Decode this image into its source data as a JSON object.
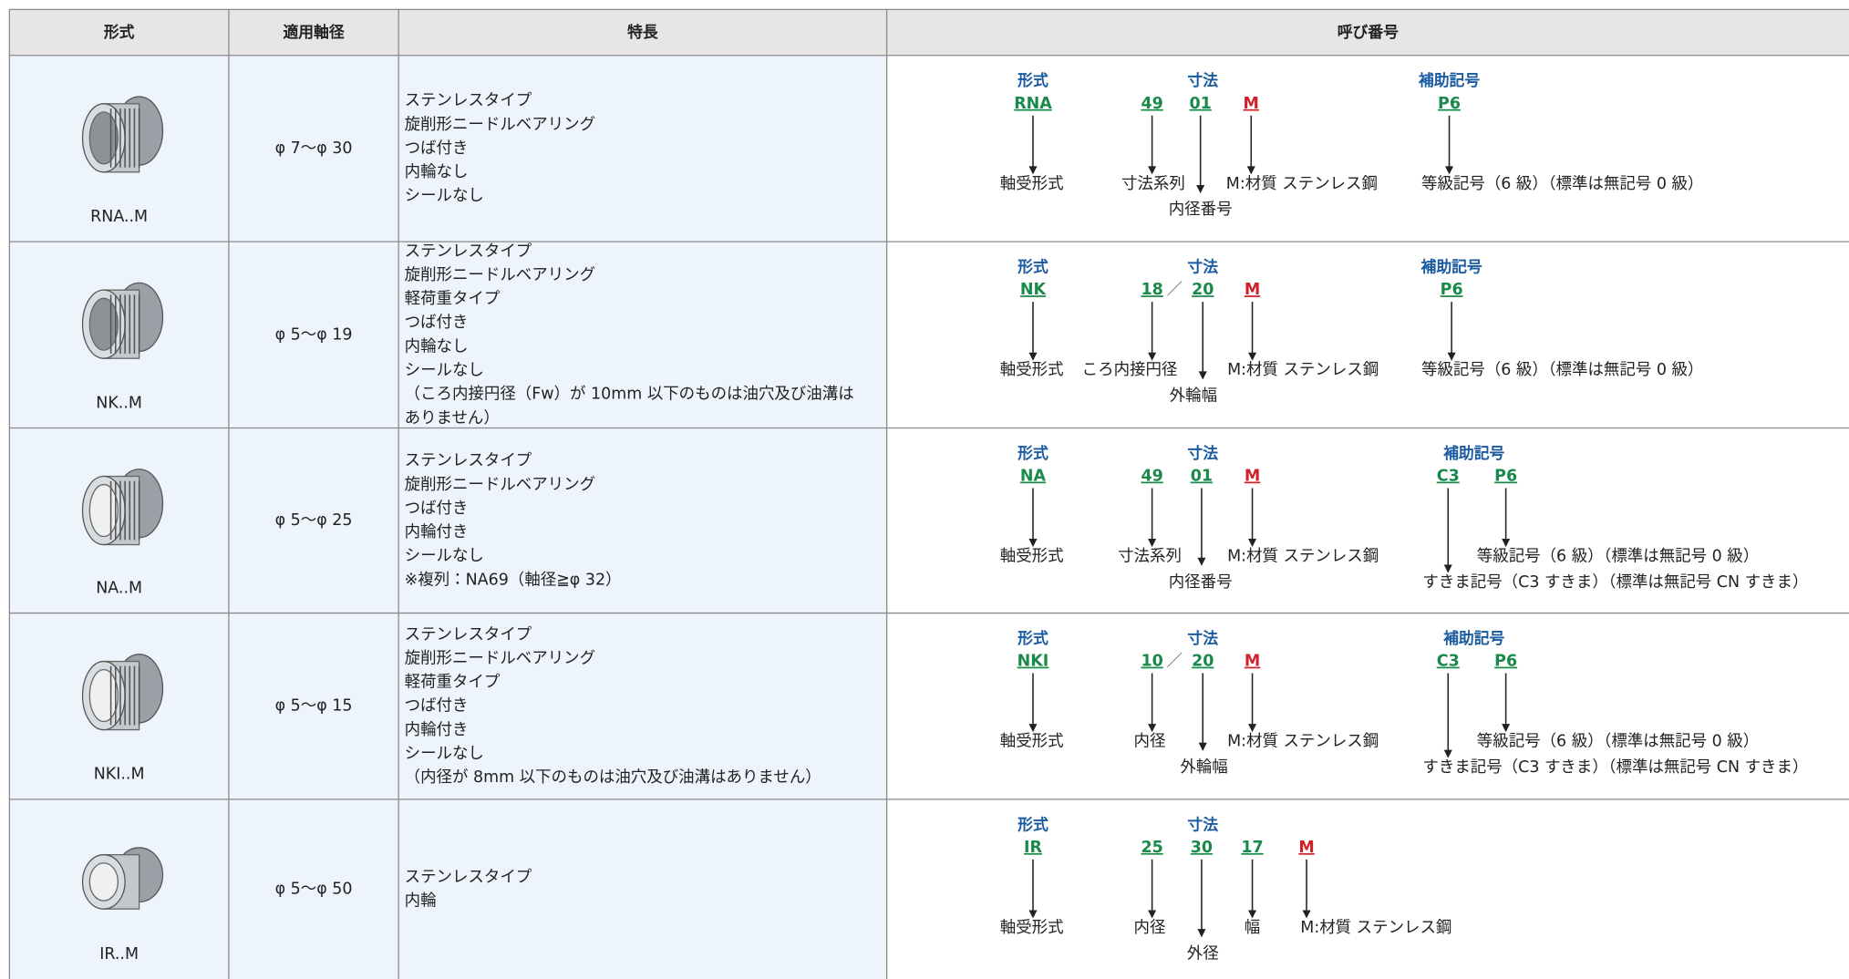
{
  "header": {
    "columns": [
      "形式",
      "適用軸径",
      "特長",
      "呼び番号"
    ]
  },
  "rows": [
    {
      "model": "RNA..M",
      "shaft": "φ 7～φ 30",
      "features": [
        "ステンレスタイプ",
        "旋削形ニードルベアリング",
        "つば付き",
        "内輪なし",
        "シールなし"
      ],
      "designation": {
        "labels": [
          "形式",
          "寸法",
          "補助記号"
        ],
        "codes": [
          "RNA",
          "49",
          "01",
          "M",
          "P6"
        ],
        "descriptions": [
          "軸受形式",
          "寸法系列",
          "内径番号",
          "M:材質 ステンレス鋼",
          "等級記号（6 級）（標準は無記号 0 級）"
        ]
      }
    },
    {
      "model": "NK..M",
      "shaft": "φ 5～φ 19",
      "features": [
        "ステンレスタイプ",
        "旋削形ニードルベアリング",
        "軽荷重タイプ",
        "つば付き",
        "内輪なし",
        "シールなし",
        "（ころ内接円径（Fw）が 10mm 以下のものは油穴及び油溝は",
        "ありません）"
      ],
      "designation": {
        "labels": [
          "形式",
          "寸法",
          "補助記号"
        ],
        "codes": [
          "NK",
          "18",
          "／",
          "20",
          "M",
          "P6"
        ],
        "descriptions": [
          "軸受形式",
          "ころ内接円径",
          "外輪幅",
          "M:材質 ステンレス鋼",
          "等級記号（6 級）（標準は無記号 0 級）"
        ]
      }
    },
    {
      "model": "NA..M",
      "shaft": "φ 5～φ 25",
      "features": [
        "ステンレスタイプ",
        "旋削形ニードルベアリング",
        "つば付き",
        "内輪付き",
        "シールなし",
        "※複列：NA69（軸径≧φ 32）"
      ],
      "designation": {
        "labels": [
          "形式",
          "寸法",
          "補助記号"
        ],
        "codes": [
          "NA",
          "49",
          "01",
          "M",
          "C3",
          "P6"
        ],
        "descriptions": [
          "軸受形式",
          "寸法系列",
          "内径番号",
          "M:材質 ステンレス鋼",
          "等級記号（6 級）（標準は無記号 0 級）",
          "すきま記号（C3 すきま）（標準は無記号 CN すきま）"
        ]
      }
    },
    {
      "model": "NKI..M",
      "shaft": "φ 5～φ 15",
      "features": [
        "ステンレスタイプ",
        "旋削形ニードルベアリング",
        "軽荷重タイプ",
        "つば付き",
        "内輪付き",
        "シールなし",
        "（内径が 8mm 以下のものは油穴及び油溝はありません）"
      ],
      "designation": {
        "labels": [
          "形式",
          "寸法",
          "補助記号"
        ],
        "codes": [
          "NKI",
          "10",
          "／",
          "20",
          "M",
          "C3",
          "P6"
        ],
        "descriptions": [
          "軸受形式",
          "内径",
          "外輪幅",
          "M:材質 ステンレス鋼",
          "等級記号（6 級）（標準は無記号 0 級）",
          "すきま記号（C3 すきま）（標準は無記号 CN すきま）"
        ]
      }
    },
    {
      "model": "IR..M",
      "shaft": "φ 5～φ 50",
      "features": [
        "ステンレスタイプ",
        "内輪"
      ],
      "designation": {
        "labels": [
          "形式",
          "寸法"
        ],
        "codes": [
          "IR",
          "25",
          "30",
          "17",
          "M"
        ],
        "descriptions": [
          "軸受形式",
          "内径",
          "外径",
          "幅",
          "M:材質 ステンレス鋼"
        ]
      }
    }
  ]
}
